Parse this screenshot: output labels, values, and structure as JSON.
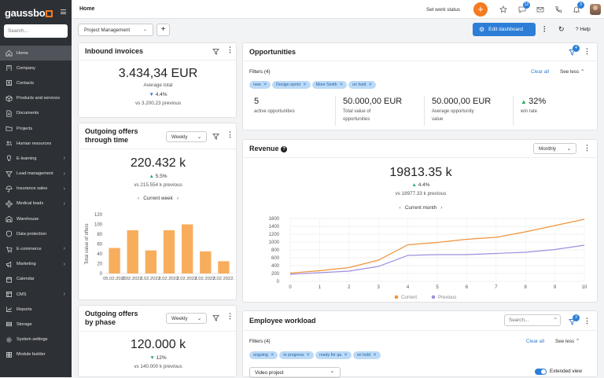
{
  "app": {
    "logo": "gaussbo"
  },
  "sidebar": {
    "search_placeholder": "Search...",
    "items": [
      {
        "label": "Home",
        "icon": "home-icon",
        "active": true,
        "chevron": false
      },
      {
        "label": "Company",
        "icon": "building-icon",
        "chevron": false
      },
      {
        "label": "Contacts",
        "icon": "contacts-icon",
        "chevron": false
      },
      {
        "label": "Products and services",
        "icon": "box-icon",
        "chevron": false
      },
      {
        "label": "Documents",
        "icon": "document-icon",
        "chevron": false
      },
      {
        "label": "Projects",
        "icon": "folder-icon",
        "chevron": false
      },
      {
        "label": "Human resources",
        "icon": "people-icon",
        "chevron": false
      },
      {
        "label": "E-learning",
        "icon": "bulb-icon",
        "chevron": true
      },
      {
        "label": "Lead management",
        "icon": "funnel-icon",
        "chevron": true
      },
      {
        "label": "Insurance sales",
        "icon": "umbrella-icon",
        "chevron": true
      },
      {
        "label": "Medical leads",
        "icon": "medical-icon",
        "chevron": true
      },
      {
        "label": "Warehouse",
        "icon": "warehouse-icon",
        "chevron": false
      },
      {
        "label": "Data protection",
        "icon": "shield-icon",
        "chevron": false
      },
      {
        "label": "E-commerce",
        "icon": "cart-icon",
        "chevron": true
      },
      {
        "label": "Marketing",
        "icon": "megaphone-icon",
        "chevron": true
      },
      {
        "label": "Calendar",
        "icon": "calendar-icon",
        "chevron": false
      },
      {
        "label": "CMS",
        "icon": "cms-icon",
        "chevron": true
      },
      {
        "label": "Reports",
        "icon": "chart-icon",
        "chevron": false
      },
      {
        "label": "Storage",
        "icon": "storage-icon",
        "chevron": false
      },
      {
        "label": "System settings",
        "icon": "gear-icon",
        "chevron": false
      },
      {
        "label": "Module builder",
        "icon": "module-icon",
        "chevron": false
      }
    ]
  },
  "topbar": {
    "title": "Home",
    "set_work_status": "Set work status",
    "messages_badge": "12",
    "notifications_badge": "3"
  },
  "toolbar": {
    "dashboard_select": "Project Management",
    "edit_dashboard": "Edit dashboard",
    "help": "Help"
  },
  "inbound": {
    "title": "Inbound invoices",
    "value": "3.434,34 EUR",
    "label": "Average total",
    "delta": "4.4%",
    "prev": "vs 3.200,23 previous"
  },
  "offers_time": {
    "title_line1": "Outgoing offers",
    "title_line2": "through time",
    "period": "Weekly",
    "value": "220.432 k",
    "delta": "5.5%",
    "prev": "vs 215.554 k previous",
    "nav_label": "Current week"
  },
  "offers_phase": {
    "title_line1": "Outgoing offers",
    "title_line2": "by phase",
    "period": "Weekly",
    "value": "120.000 k",
    "delta": "12%",
    "prev": "vs 140.000 k previous"
  },
  "opportunities": {
    "title": "Opportunities",
    "badge": "4",
    "filters_label": "Filters (4)",
    "chips": [
      "new",
      "Design sprint",
      "More Smith",
      "on hold"
    ],
    "clear_all": "Clear all",
    "see_less": "See less",
    "stats": [
      {
        "value": "5",
        "label_line1": "active opportunities",
        "label_line2": ""
      },
      {
        "value": "50.000,00 EUR",
        "label_line1": "Total value of",
        "label_line2": "opportunities"
      },
      {
        "value": "50.000,00 EUR",
        "label_line1": "Average opportunity",
        "label_line2": "value"
      },
      {
        "value": "32%",
        "label_line1": "win rate",
        "label_line2": ""
      }
    ]
  },
  "revenue": {
    "title": "Revenue",
    "period": "Monthly",
    "value": "19813.35 k",
    "delta": "4.4%",
    "prev": "vs 18977.33 k previous",
    "nav_label": "Current month"
  },
  "workload": {
    "title": "Employee workload",
    "search_placeholder": "Search...",
    "badge": "3",
    "filters_label": "Filters (4)",
    "chips": [
      "ongoing",
      "in progress",
      "ready for qa",
      "on hold"
    ],
    "clear_all": "Clear all",
    "see_less": "See less",
    "project_select": "Video project",
    "extended_view": "Extended view"
  },
  "colors": {
    "accent": "#f47b20",
    "primary": "#2d7ed6",
    "bar": "#f8ad5d",
    "line_current": "#f0933b",
    "line_previous": "#9d8fe0"
  },
  "chart_data": [
    {
      "type": "bar",
      "ylabel": "Total value of offers",
      "categories": [
        "05.02.2022.",
        "05.02.2022.",
        "05.02.2022.",
        "05.02.2022.",
        "05.02.2022.",
        "05.02.2022.",
        "05.02.2022."
      ],
      "category_labels_visible": [
        "05.02.2022",
        "2.02.2022.",
        "2.02.2022.",
        "2.02.2022.",
        "2.02.2022.",
        "2.02.2022.",
        "2.02.2022."
      ],
      "values": [
        52,
        88,
        47,
        88,
        100,
        45,
        25
      ],
      "ylim": [
        0,
        120
      ],
      "yticks": [
        0,
        20,
        40,
        60,
        80,
        100,
        120
      ],
      "grid": false
    },
    {
      "type": "line",
      "x": [
        0,
        1,
        2,
        3,
        4,
        5,
        6,
        7,
        8,
        9,
        10
      ],
      "series": [
        {
          "name": "Current",
          "values": [
            210,
            270,
            350,
            540,
            930,
            990,
            1070,
            1120,
            1260,
            1420,
            1580
          ]
        },
        {
          "name": "Previous",
          "values": [
            180,
            220,
            260,
            380,
            660,
            680,
            680,
            710,
            740,
            810,
            920
          ]
        }
      ],
      "ylim": [
        0,
        1600
      ],
      "yticks": [
        0,
        200,
        400,
        600,
        800,
        1000,
        1200,
        1400,
        1600
      ],
      "xticks": [
        0,
        1,
        2,
        3,
        4,
        5,
        6,
        7,
        8,
        9,
        10
      ],
      "grid": true,
      "legend": "bottom"
    }
  ]
}
